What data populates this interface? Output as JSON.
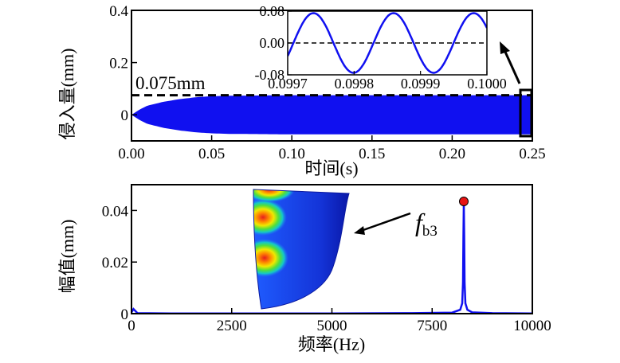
{
  "chart_data": [
    {
      "type": "area",
      "xlabel": "时间(s)",
      "ylabel": "侵入量(mm)",
      "xlim": [
        0,
        0.25
      ],
      "ylim": [
        -0.1,
        0.4
      ],
      "xticks": [
        "0.00",
        "0.05",
        "0.10",
        "0.15",
        "0.20",
        "0.25"
      ],
      "yticks": [
        "0",
        "0.2",
        "0.4"
      ],
      "ytick_values": [
        0,
        0.2,
        0.4
      ],
      "xtick_values": [
        0,
        0.05,
        0.1,
        0.15,
        0.2,
        0.25
      ],
      "series_color": "#1010f0",
      "envelope": {
        "x": [
          0,
          0.005,
          0.01,
          0.02,
          0.03,
          0.04,
          0.05,
          0.06,
          0.08,
          0.1,
          0.15,
          0.2,
          0.25
        ],
        "upper": [
          0.0,
          0.02,
          0.035,
          0.05,
          0.06,
          0.067,
          0.071,
          0.073,
          0.074,
          0.075,
          0.075,
          0.075,
          0.075
        ],
        "lower": [
          0.0,
          -0.02,
          -0.035,
          -0.05,
          -0.06,
          -0.067,
          -0.071,
          -0.073,
          -0.074,
          -0.075,
          -0.075,
          -0.075,
          -0.075
        ]
      },
      "reference_line": {
        "value": 0.075,
        "label": "0.075mm",
        "style": "dashed"
      },
      "inset": {
        "type": "line",
        "xlim": [
          0.0997,
          0.1
        ],
        "ylim": [
          -0.08,
          0.08
        ],
        "xticks": [
          "0.0997",
          "0.0998",
          "0.0999",
          "0.1000"
        ],
        "xtick_values": [
          0.0997,
          0.0998,
          0.0999,
          0.1
        ],
        "yticks": [
          "0.08",
          "0.00",
          "-0.08"
        ],
        "ytick_values": [
          0.08,
          0,
          -0.08
        ],
        "amplitude": 0.075,
        "frequency_hz": 8290,
        "zero_line": "dashed"
      }
    },
    {
      "type": "line",
      "xlabel": "频率(Hz)",
      "ylabel": "幅值(mm)",
      "xlim": [
        0,
        10000
      ],
      "ylim": [
        0,
        0.05
      ],
      "xticks": [
        "0",
        "2500",
        "5000",
        "7500",
        "10000"
      ],
      "xtick_values": [
        0,
        2500,
        5000,
        7500,
        10000
      ],
      "yticks": [
        "0",
        "0.02",
        "0.04"
      ],
      "ytick_values": [
        0,
        0.02,
        0.04
      ],
      "series_color": "#1010f0",
      "x": [
        0,
        50,
        100,
        150,
        1000,
        3000,
        5000,
        7000,
        8000,
        8200,
        8250,
        8270,
        8280,
        8290,
        8300,
        8310,
        8330,
        8380,
        8500,
        9000,
        10000
      ],
      "y": [
        0.0005,
        0.0018,
        0.001,
        0.0002,
        0.0001,
        0.0001,
        0.0001,
        0.0002,
        0.0004,
        0.0015,
        0.004,
        0.012,
        0.03,
        0.043,
        0.03,
        0.012,
        0.004,
        0.0015,
        0.0005,
        0.0002,
        0.0001
      ],
      "peak": {
        "x": 8290,
        "y": 0.0435,
        "marker_color": "#e81414",
        "label": "f",
        "label_sub": "b3"
      },
      "mode_shape_image": "fea-mode-shape"
    }
  ]
}
